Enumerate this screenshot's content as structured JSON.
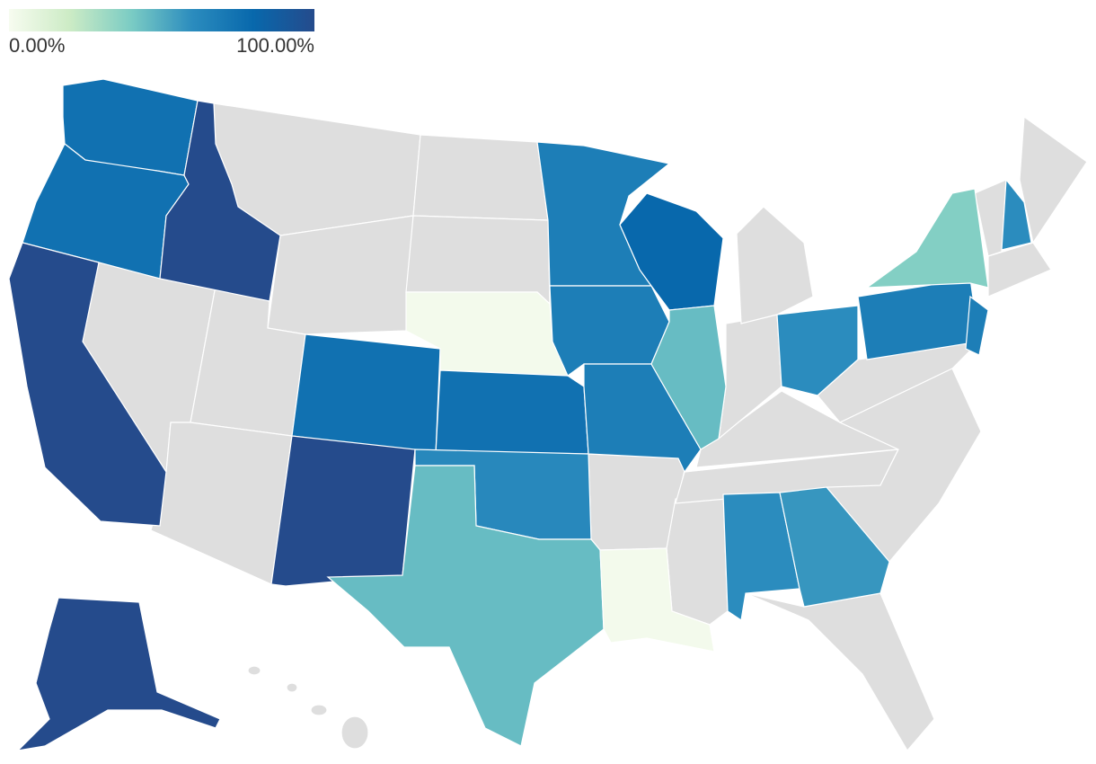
{
  "legend": {
    "ticks": [
      {
        "value": 0,
        "label": "0.00%"
      },
      {
        "value": 100,
        "label": "100.00%"
      }
    ],
    "colors": [
      "#f7fcf0",
      "#ccebc5",
      "#7bccc4",
      "#2b8cbe",
      "#0868ac",
      "#254b8c"
    ]
  },
  "regions": [
    75,
    75,
    100,
    100,
    75,
    100,
    2,
    75,
    62,
    45,
    68,
    68,
    68,
    80,
    45,
    2,
    60,
    57,
    60,
    68,
    68,
    38,
    60,
    100
  ]
}
